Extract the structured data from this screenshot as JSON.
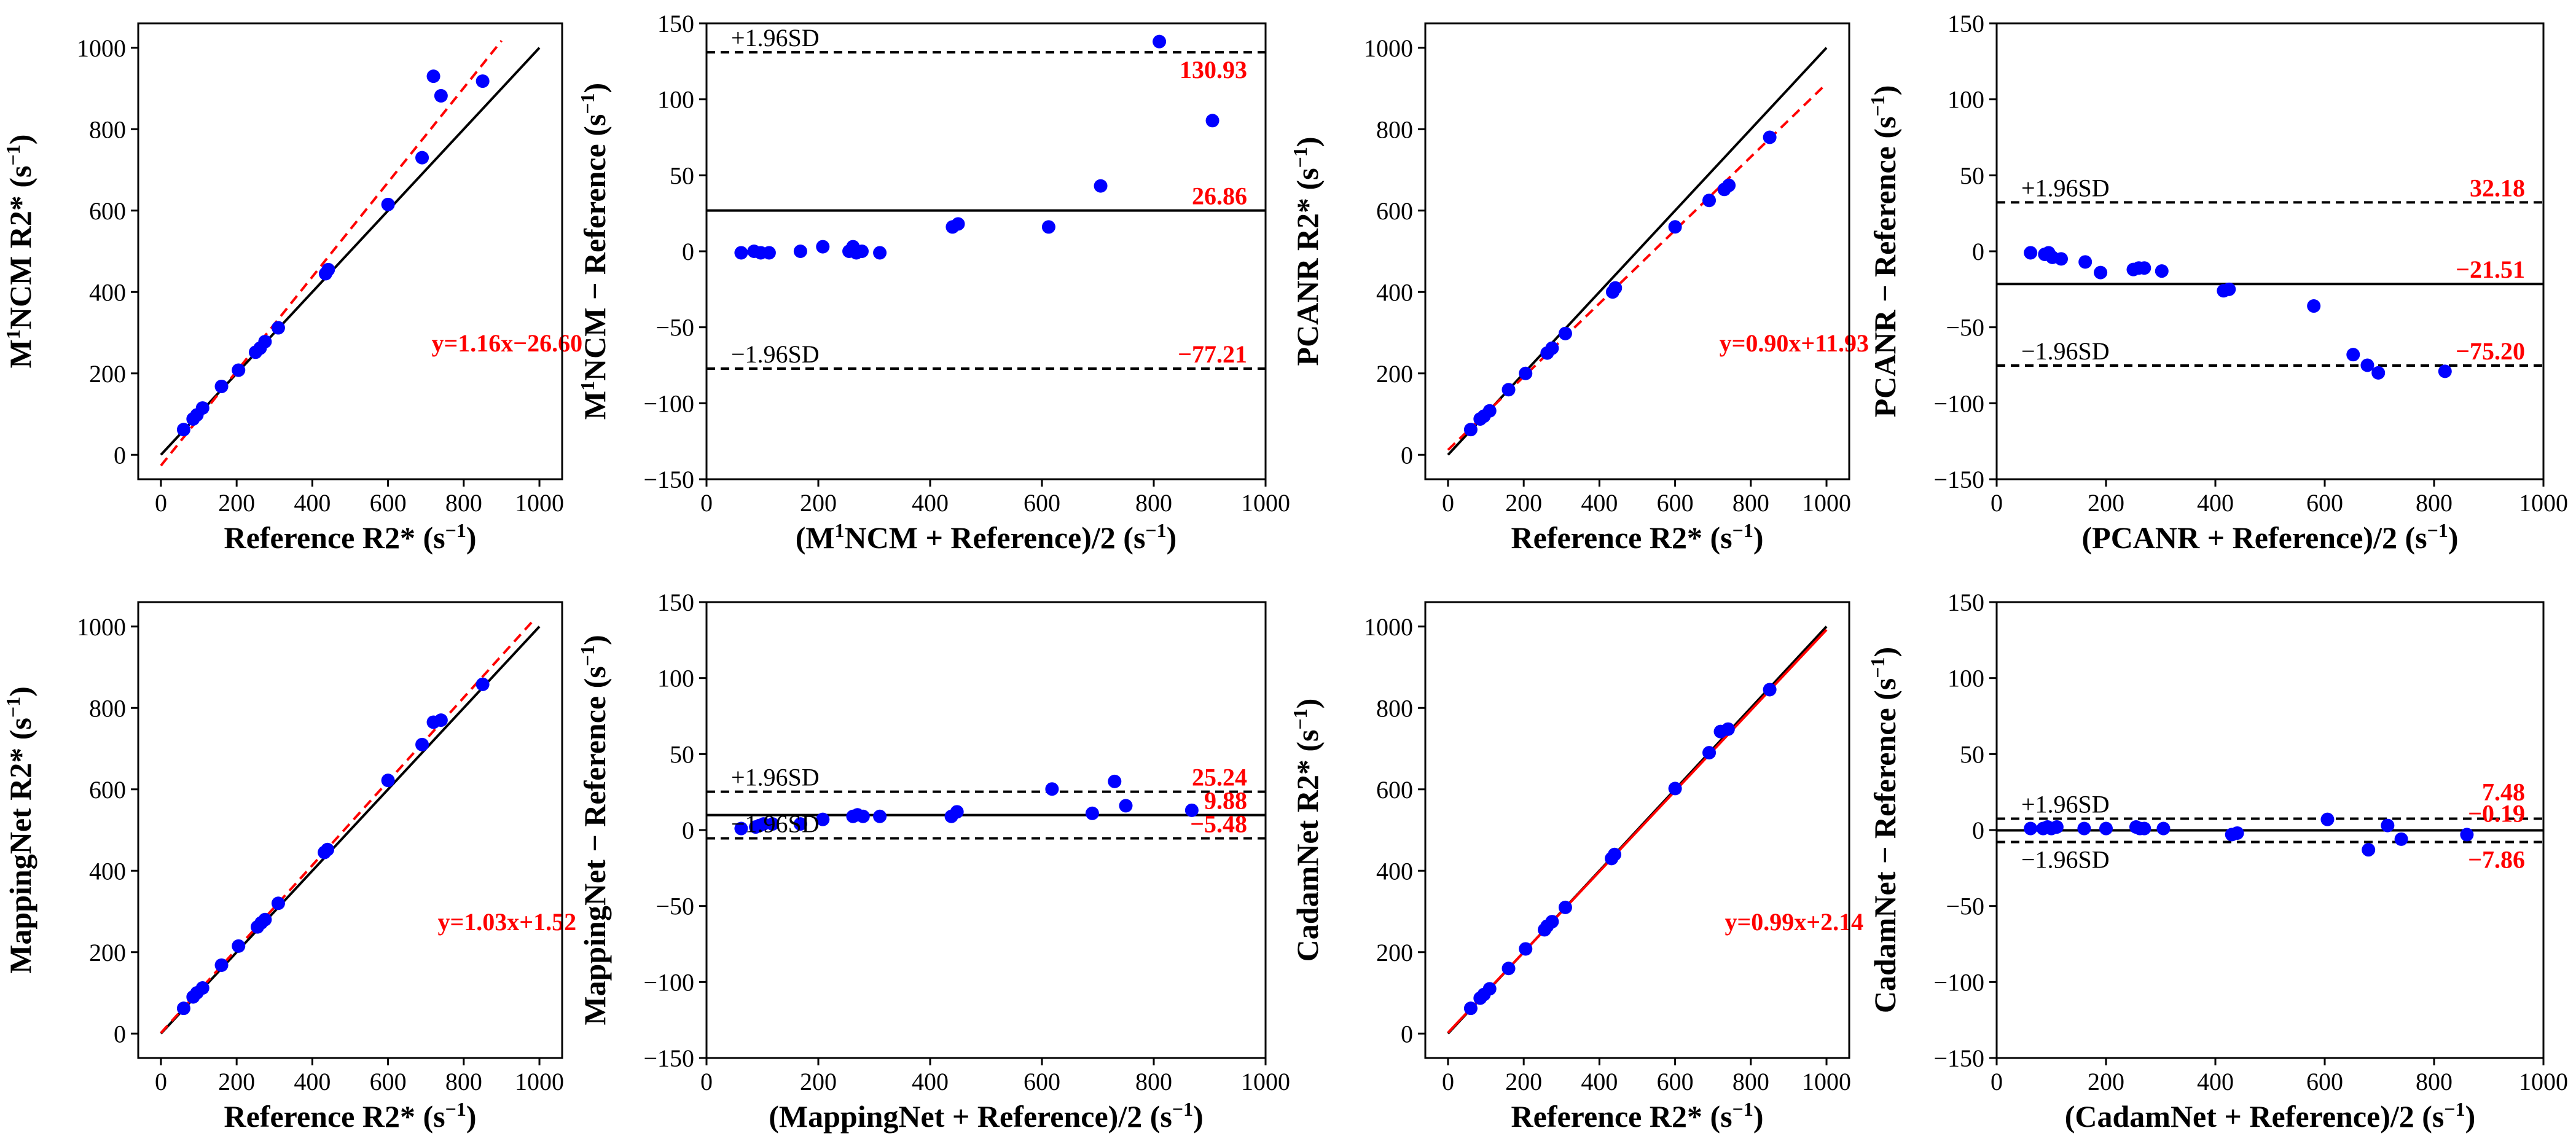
{
  "chart_data": [
    {
      "type": "scatter",
      "kind": "correlation",
      "ylabel_main": "M",
      "ylabel_sup": "1",
      "ylabel_rest": "NCM R2* (s",
      "ylabel_sup2": "−1",
      "ylabel_end": ")",
      "xlabel_main": "Reference R2* (s",
      "xlabel_sup": "−1",
      "xlabel_end": ")",
      "xlim": [
        -60,
        1060
      ],
      "ylim": [
        -60,
        1060
      ],
      "xticks": [
        0,
        200,
        400,
        600,
        800,
        1000
      ],
      "xtick_labels": [
        "0",
        "200",
        "400",
        "600",
        "800",
        "1000"
      ],
      "yticks": [
        0,
        200,
        400,
        600,
        800,
        1000
      ],
      "ytick_labels": [
        "0",
        "200",
        "400",
        "600",
        "800",
        "1000"
      ],
      "equation": "y=1.16x−26.60",
      "fit": {
        "slope": 1.16,
        "intercept": -26.6,
        "x_end": 900
      },
      "x": [
        60,
        85,
        95,
        110,
        160,
        205,
        250,
        262,
        275,
        310,
        435,
        442,
        600,
        690,
        720,
        740,
        850
      ],
      "y": [
        62,
        88,
        98,
        115,
        168,
        208,
        252,
        262,
        278,
        312,
        445,
        455,
        615,
        730,
        930,
        882,
        918
      ]
    },
    {
      "type": "scatter",
      "kind": "bland-altman",
      "ylabel_main": "M",
      "ylabel_sup": "1",
      "ylabel_rest": "NCM − Reference (s",
      "ylabel_sup2": "−1",
      "ylabel_end": ")",
      "xlabel_main": "(M",
      "xlabel_sup": "1",
      "xlabel_rest": "NCM + Reference)/2 (s",
      "xlabel_sup2": "−1",
      "xlabel_end": ")",
      "xlim": [
        0,
        1000
      ],
      "ylim": [
        -150,
        150
      ],
      "xticks": [
        0,
        200,
        400,
        600,
        800,
        1000
      ],
      "xtick_labels": [
        "0",
        "200",
        "400",
        "600",
        "800",
        "1000"
      ],
      "yticks": [
        -150,
        -100,
        -50,
        0,
        50,
        100,
        150
      ],
      "ytick_labels": [
        "−150",
        "−100",
        "−50",
        "0",
        "50",
        "100",
        "150"
      ],
      "upper_label": "+1.96SD",
      "lower_label": "−1.96SD",
      "mean": 26.86,
      "upper": 130.93,
      "lower": -77.21,
      "mean_text": "26.86",
      "upper_text": "130.93",
      "lower_text": "−77.21",
      "x": [
        62,
        85,
        97,
        112,
        168,
        208,
        255,
        262,
        268,
        278,
        310,
        440,
        450,
        612,
        705,
        810,
        905
      ],
      "y": [
        -1,
        0,
        -1,
        -1,
        0,
        3,
        0,
        3,
        -1,
        0,
        -1,
        16,
        18,
        16,
        43,
        138,
        86
      ]
    },
    {
      "type": "scatter",
      "kind": "correlation",
      "ylabel_main": "PCANR R2* (s",
      "ylabel_sup": "−1",
      "ylabel_end": ")",
      "xlabel_main": "Reference R2* (s",
      "xlabel_sup": "−1",
      "xlabel_end": ")",
      "xlim": [
        -60,
        1060
      ],
      "ylim": [
        -60,
        1060
      ],
      "xticks": [
        0,
        200,
        400,
        600,
        800,
        1000
      ],
      "xtick_labels": [
        "0",
        "200",
        "400",
        "600",
        "800",
        "1000"
      ],
      "yticks": [
        0,
        200,
        400,
        600,
        800,
        1000
      ],
      "ytick_labels": [
        "0",
        "200",
        "400",
        "600",
        "800",
        "1000"
      ],
      "equation": "y=0.90x+11.93",
      "fit": {
        "slope": 0.9,
        "intercept": 11.93,
        "x_end": 1000
      },
      "x": [
        60,
        85,
        95,
        110,
        160,
        205,
        262,
        275,
        310,
        435,
        442,
        600,
        690,
        730,
        742,
        850
      ],
      "y": [
        62,
        88,
        95,
        108,
        160,
        200,
        250,
        262,
        298,
        400,
        410,
        560,
        625,
        652,
        662,
        780
      ]
    },
    {
      "type": "scatter",
      "kind": "bland-altman",
      "ylabel_main": "PCANR − Reference (s",
      "ylabel_sup": "−1",
      "ylabel_end": ")",
      "xlabel_main": "(PCANR + Reference)/2 (s",
      "xlabel_sup": "−1",
      "xlabel_end": ")",
      "xlim": [
        0,
        1000
      ],
      "ylim": [
        -150,
        150
      ],
      "xticks": [
        0,
        200,
        400,
        600,
        800,
        1000
      ],
      "xtick_labels": [
        "0",
        "200",
        "400",
        "600",
        "800",
        "1000"
      ],
      "yticks": [
        -150,
        -100,
        -50,
        0,
        50,
        100,
        150
      ],
      "ytick_labels": [
        "−150",
        "−100",
        "−50",
        "0",
        "50",
        "100",
        "150"
      ],
      "upper_label": "+1.96SD",
      "lower_label": "−1.96SD",
      "mean": -21.51,
      "upper": 32.18,
      "lower": -75.2,
      "mean_text": "−21.51",
      "upper_text": "32.18",
      "lower_text": "−75.20",
      "x": [
        62,
        88,
        95,
        102,
        118,
        162,
        190,
        250,
        260,
        270,
        302,
        415,
        425,
        580,
        652,
        678,
        698,
        820
      ],
      "y": [
        -1,
        -2,
        -1,
        -4,
        -5,
        -7,
        -14,
        -12,
        -11,
        -11,
        -13,
        -26,
        -25,
        -36,
        -68,
        -75,
        -80,
        -79
      ]
    },
    {
      "type": "scatter",
      "kind": "correlation",
      "ylabel_main": "MappingNet R2* (s",
      "ylabel_sup": "−1",
      "ylabel_end": ")",
      "xlabel_main": "Reference R2* (s",
      "xlabel_sup": "−1",
      "xlabel_end": ")",
      "xlim": [
        -60,
        1060
      ],
      "ylim": [
        -60,
        1060
      ],
      "xticks": [
        0,
        200,
        400,
        600,
        800,
        1000
      ],
      "xtick_labels": [
        "0",
        "200",
        "400",
        "600",
        "800",
        "1000"
      ],
      "yticks": [
        0,
        200,
        400,
        600,
        800,
        1000
      ],
      "ytick_labels": [
        "0",
        "200",
        "400",
        "600",
        "800",
        "1000"
      ],
      "equation": "y=1.03x+1.52",
      "fit": {
        "slope": 1.03,
        "intercept": 1.52,
        "x_end": 985
      },
      "x": [
        60,
        85,
        95,
        110,
        160,
        205,
        255,
        265,
        275,
        310,
        432,
        440,
        600,
        690,
        720,
        740,
        850
      ],
      "y": [
        62,
        90,
        100,
        112,
        168,
        215,
        262,
        272,
        280,
        320,
        445,
        452,
        622,
        710,
        765,
        770,
        858
      ]
    },
    {
      "type": "scatter",
      "kind": "bland-altman",
      "ylabel_main": "MappingNet − Reference (s",
      "ylabel_sup": "−1",
      "ylabel_end": ")",
      "xlabel_main": "(MappingNet + Reference)/2 (s",
      "xlabel_sup": "−1",
      "xlabel_end": ")",
      "xlim": [
        0,
        1000
      ],
      "ylim": [
        -150,
        150
      ],
      "xticks": [
        0,
        200,
        400,
        600,
        800,
        1000
      ],
      "xtick_labels": [
        "0",
        "200",
        "400",
        "600",
        "800",
        "1000"
      ],
      "yticks": [
        -150,
        -100,
        -50,
        0,
        50,
        100,
        150
      ],
      "ytick_labels": [
        "−150",
        "−100",
        "−50",
        "0",
        "50",
        "100",
        "150"
      ],
      "upper_label": "+1.96SD",
      "lower_label": "−1.96SD",
      "mean": 9.88,
      "upper": 25.24,
      "lower": -5.48,
      "mean_text": "9.88",
      "upper_text": "25.24",
      "lower_text": "−5.48",
      "x": [
        62,
        88,
        95,
        102,
        118,
        168,
        208,
        262,
        270,
        280,
        310,
        438,
        448,
        618,
        690,
        730,
        750,
        868
      ],
      "y": [
        1,
        2,
        3,
        4,
        4,
        4,
        7,
        9,
        10,
        9,
        9,
        9,
        12,
        27,
        11,
        32,
        16,
        13
      ]
    },
    {
      "type": "scatter",
      "kind": "correlation",
      "ylabel_main": "CadamNet R2* (s",
      "ylabel_sup": "−1",
      "ylabel_end": ")",
      "xlabel_main": "Reference R2* (s",
      "xlabel_sup": "−1",
      "xlabel_end": ")",
      "xlim": [
        -60,
        1060
      ],
      "ylim": [
        -60,
        1060
      ],
      "xticks": [
        0,
        200,
        400,
        600,
        800,
        1000
      ],
      "xtick_labels": [
        "0",
        "200",
        "400",
        "600",
        "800",
        "1000"
      ],
      "yticks": [
        0,
        200,
        400,
        600,
        800,
        1000
      ],
      "ytick_labels": [
        "0",
        "200",
        "400",
        "600",
        "800",
        "1000"
      ],
      "equation": "y=0.99x+2.14",
      "fit": {
        "slope": 0.99,
        "intercept": 2.14,
        "x_end": 1000
      },
      "x": [
        60,
        85,
        95,
        110,
        160,
        205,
        255,
        262,
        275,
        310,
        432,
        440,
        600,
        690,
        720,
        740,
        850
      ],
      "y": [
        62,
        87,
        96,
        110,
        160,
        208,
        255,
        264,
        275,
        310,
        430,
        440,
        602,
        690,
        742,
        748,
        845
      ]
    },
    {
      "type": "scatter",
      "kind": "bland-altman",
      "ylabel_main": "CadamNet − Reference (s",
      "ylabel_sup": "−1",
      "ylabel_end": ")",
      "xlabel_main": "(CadamNet + Reference)/2 (s",
      "xlabel_sup": "−1",
      "xlabel_end": ")",
      "xlim": [
        0,
        1000
      ],
      "ylim": [
        -150,
        150
      ],
      "xticks": [
        0,
        200,
        400,
        600,
        800,
        1000
      ],
      "xtick_labels": [
        "0",
        "200",
        "400",
        "600",
        "800",
        "1000"
      ],
      "yticks": [
        -150,
        -100,
        -50,
        0,
        50,
        100,
        150
      ],
      "ytick_labels": [
        "−150",
        "−100",
        "−50",
        "0",
        "50",
        "100",
        "150"
      ],
      "upper_label": "+1.96SD",
      "lower_label": "−1.96SD",
      "mean": -0.19,
      "upper": 7.48,
      "lower": -7.86,
      "mean_text": "−0.19",
      "upper_text": "7.48",
      "lower_text": "−7.86",
      "x": [
        62,
        85,
        93,
        100,
        110,
        160,
        200,
        255,
        262,
        270,
        305,
        430,
        440,
        605,
        680,
        715,
        740,
        860
      ],
      "y": [
        1,
        1,
        2,
        1,
        2,
        1,
        1,
        2,
        1,
        1,
        1,
        -3,
        -2,
        7,
        -13,
        3,
        -6,
        -3
      ]
    }
  ]
}
